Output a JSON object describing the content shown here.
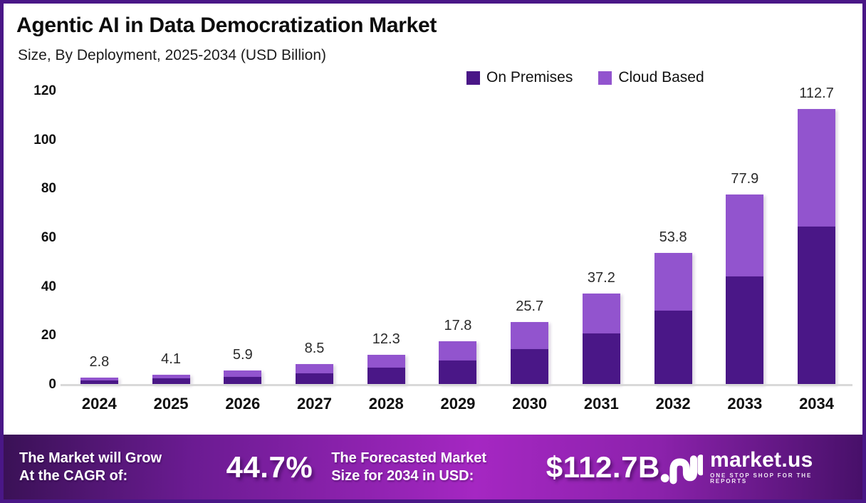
{
  "header": {
    "title": "Agentic AI in Data Democratization Market",
    "subtitle": "Size, By Deployment, 2025-2034 (USD Billion)"
  },
  "chart_data": {
    "type": "bar",
    "stacked": true,
    "title": "Agentic AI in Data Democratization Market",
    "subtitle": "Size, By Deployment, 2025-2034 (USD Billion)",
    "categories": [
      "2024",
      "2025",
      "2026",
      "2027",
      "2028",
      "2029",
      "2030",
      "2031",
      "2032",
      "2033",
      "2034"
    ],
    "series": [
      {
        "name": "On Premises",
        "color": "#4A1787",
        "values": [
          1.8,
          2.6,
          3.3,
          4.7,
          7.0,
          10.0,
          14.6,
          21.0,
          30.3,
          44.4,
          64.6
        ]
      },
      {
        "name": "Cloud Based",
        "color": "#9254CE",
        "values": [
          1.0,
          1.5,
          2.6,
          3.8,
          5.3,
          7.8,
          11.1,
          16.2,
          23.5,
          33.5,
          48.1
        ]
      }
    ],
    "totals": [
      2.8,
      4.1,
      5.9,
      8.5,
      12.3,
      17.8,
      25.7,
      37.2,
      53.8,
      77.9,
      112.7
    ],
    "total_labels": [
      "2.8",
      "4.1",
      "5.9",
      "8.5",
      "12.3",
      "17.8",
      "25.7",
      "37.2",
      "53.8",
      "77.9",
      "112.7"
    ],
    "xlabel": "",
    "ylabel": "",
    "ylim": [
      0,
      120
    ],
    "yticks": [
      0,
      20,
      40,
      60,
      80,
      100,
      120
    ],
    "legend_position": "top-right",
    "grid": false
  },
  "banner": {
    "cagr_label_line1": "The Market will Grow",
    "cagr_label_line2": "At the CAGR of:",
    "cagr_value": "44.7%",
    "forecast_label_line1": "The Forecasted Market",
    "forecast_label_line2": "Size for 2034 in USD:",
    "forecast_value": "$112.7B",
    "logo_text": "market.us",
    "logo_tagline": "ONE STOP SHOP FOR THE REPORTS"
  },
  "colors": {
    "on_premises": "#4A1787",
    "cloud_based": "#9254CE",
    "frame_border": "#4A1787",
    "axis_line": "#D9D9D9",
    "banner_gradient": [
      "#3A1156",
      "#A527C2",
      "#471069"
    ]
  }
}
